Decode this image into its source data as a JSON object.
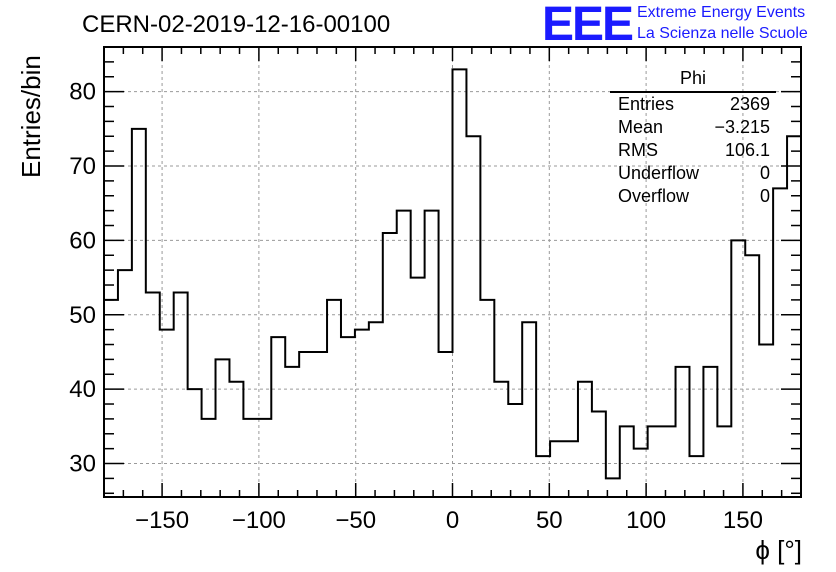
{
  "header": {
    "title": "CERN-02-2019-12-16-00100",
    "logo_text": "EEE",
    "logo_line1": "Extreme Energy Events",
    "logo_line2": "La Scienza nelle Scuole"
  },
  "stats_box": {
    "name": "Phi",
    "rows": [
      {
        "label": "Entries",
        "value": "2369"
      },
      {
        "label": "Mean",
        "value": "−3.215"
      },
      {
        "label": "RMS",
        "value": "106.1"
      },
      {
        "label": "Underflow",
        "value": "0"
      },
      {
        "label": "Overflow",
        "value": "0"
      }
    ]
  },
  "chart_data": {
    "type": "histogram",
    "title": "CERN-02-2019-12-16-00100",
    "xlabel": "ϕ [°]",
    "ylabel": "Entries/bin",
    "xlim": [
      -180,
      180
    ],
    "ylim": [
      25.5,
      86
    ],
    "bin_width": 7.2,
    "values": [
      52,
      56,
      75,
      53,
      48,
      53,
      40,
      36,
      44,
      41,
      36,
      36,
      47,
      43,
      45,
      45,
      52,
      47,
      48,
      49,
      61,
      64,
      55,
      64,
      45,
      83,
      74,
      52,
      41,
      38,
      49,
      31,
      33,
      33,
      41,
      37,
      28,
      35,
      32,
      35,
      35,
      43,
      31,
      43,
      35,
      60,
      58,
      46,
      67,
      74
    ],
    "x_ticks": [
      -150,
      -100,
      -50,
      0,
      50,
      100,
      150
    ],
    "x_tick_labels": [
      "−150",
      "−100",
      "−50",
      "0",
      "50",
      "100",
      "150"
    ],
    "y_ticks": [
      30,
      40,
      50,
      60,
      70,
      80
    ],
    "y_tick_labels": [
      "30",
      "40",
      "50",
      "60",
      "70",
      "80"
    ],
    "grid": true,
    "line_color": "#000000",
    "grid_color": "#9a9a9a"
  }
}
